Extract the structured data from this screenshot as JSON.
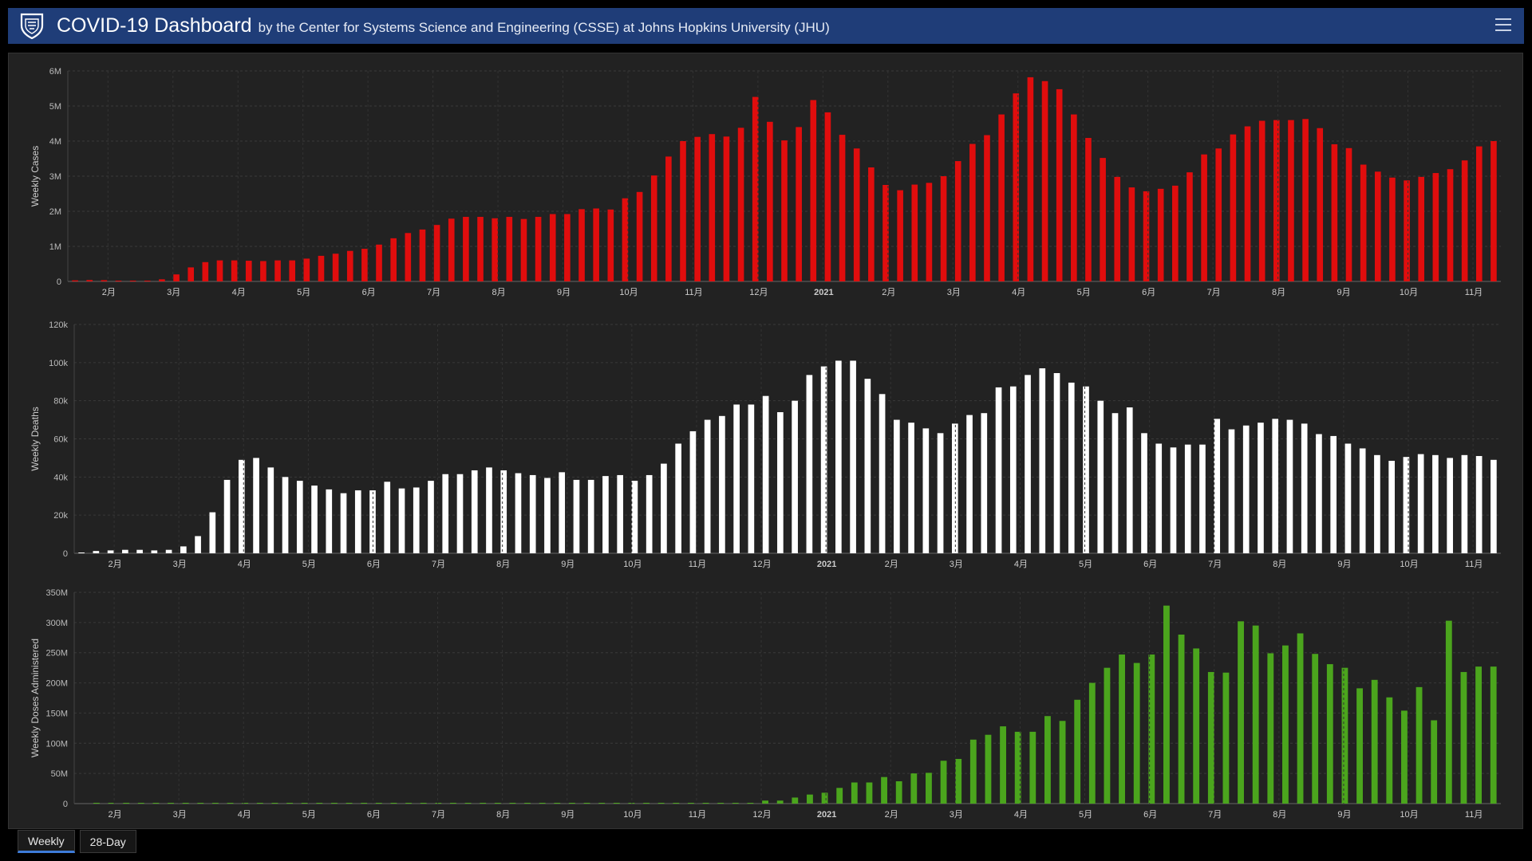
{
  "header": {
    "title": "COVID-19 Dashboard",
    "subtitle": "by the Center for Systems Science and Engineering (CSSE) at Johns Hopkins University (JHU)",
    "logo_icon": "university-shield-icon",
    "menu_icon": "hamburger-menu-icon"
  },
  "tabs": [
    {
      "label": "Weekly",
      "active": true
    },
    {
      "label": "28-Day",
      "active": false
    }
  ],
  "colors": {
    "header_bg": "#1f3d78",
    "panel_bg": "#222222",
    "cases": "#e00d0d",
    "deaths": "#ffffff",
    "doses": "#4ba51d",
    "tab_accent": "#3d7bd9"
  },
  "chart_data": [
    {
      "type": "bar",
      "ylabel": "Weekly Cases",
      "ylim": [
        0,
        6000000
      ],
      "yticks": [
        "0",
        "1M",
        "2M",
        "3M",
        "4M",
        "5M",
        "6M"
      ],
      "xticks": [
        "2月",
        "3月",
        "4月",
        "5月",
        "6月",
        "7月",
        "8月",
        "9月",
        "10月",
        "11月",
        "12月",
        "2021",
        "2月",
        "3月",
        "4月",
        "5月",
        "6月",
        "7月",
        "8月",
        "9月",
        "10月",
        "11月"
      ],
      "grid": true,
      "color": "#e00d0d",
      "values": [
        30000,
        40000,
        35000,
        8000,
        5000,
        20000,
        60000,
        200000,
        400000,
        550000,
        600000,
        600000,
        590000,
        580000,
        600000,
        600000,
        650000,
        730000,
        790000,
        870000,
        930000,
        1050000,
        1230000,
        1380000,
        1480000,
        1610000,
        1790000,
        1840000,
        1840000,
        1800000,
        1840000,
        1780000,
        1840000,
        1920000,
        1920000,
        2060000,
        2080000,
        2050000,
        2370000,
        2550000,
        3020000,
        3560000,
        4000000,
        4120000,
        4200000,
        4130000,
        4380000,
        5260000,
        4550000,
        4020000,
        4400000,
        5170000,
        4820000,
        4180000,
        3790000,
        3250000,
        2750000,
        2600000,
        2760000,
        2810000,
        3000000,
        3430000,
        3920000,
        4170000,
        4760000,
        5360000,
        5820000,
        5710000,
        5480000,
        4760000,
        4090000,
        3520000,
        2980000,
        2680000,
        2570000,
        2640000,
        2730000,
        3110000,
        3620000,
        3790000,
        4190000,
        4420000,
        4580000,
        4600000,
        4600000,
        4630000,
        4370000,
        3910000,
        3800000,
        3330000,
        3130000,
        2960000,
        2880000,
        2980000,
        3090000,
        3200000,
        3450000,
        3850000,
        4000000
      ]
    },
    {
      "type": "bar",
      "ylabel": "Weekly Deaths",
      "ylim": [
        0,
        120000
      ],
      "yticks": [
        "0",
        "20k",
        "40k",
        "60k",
        "80k",
        "100k",
        "120k"
      ],
      "xticks": [
        "2月",
        "3月",
        "4月",
        "5月",
        "6月",
        "7月",
        "8月",
        "9月",
        "10月",
        "11月",
        "12月",
        "2021",
        "2月",
        "3月",
        "4月",
        "5月",
        "6月",
        "7月",
        "8月",
        "9月",
        "10月",
        "11月"
      ],
      "grid": true,
      "color": "#ffffff",
      "values": [
        200,
        1200,
        1500,
        1800,
        1800,
        1500,
        1800,
        3600,
        9000,
        21500,
        38500,
        49000,
        50000,
        45000,
        40000,
        38000,
        35500,
        33500,
        31500,
        33000,
        33000,
        37500,
        34000,
        34500,
        38000,
        41500,
        41500,
        43500,
        45000,
        43500,
        42000,
        41000,
        39500,
        42500,
        38500,
        38500,
        40500,
        41000,
        38000,
        41000,
        47000,
        57500,
        64000,
        70000,
        72000,
        78000,
        78000,
        82500,
        74000,
        80000,
        93500,
        98000,
        101000,
        101000,
        91500,
        83500,
        70000,
        68500,
        65500,
        63000,
        68000,
        72500,
        73500,
        87000,
        87500,
        93500,
        97000,
        94500,
        89500,
        87500,
        80000,
        73500,
        76500,
        63000,
        57500,
        55500,
        57000,
        57000,
        70500,
        65000,
        67000,
        68500,
        70500,
        70000,
        68000,
        62500,
        61500,
        57500,
        55000,
        51500,
        48500,
        50500,
        52000,
        51500,
        50000,
        51500,
        51000,
        49000
      ]
    },
    {
      "type": "bar",
      "ylabel": "Weekly Doses Administered",
      "ylim": [
        0,
        350000000
      ],
      "yticks": [
        "0",
        "50M",
        "100M",
        "150M",
        "200M",
        "250M",
        "300M",
        "350M"
      ],
      "xticks": [
        "2月",
        "3月",
        "4月",
        "5月",
        "6月",
        "7月",
        "8月",
        "9月",
        "10月",
        "11月",
        "12月",
        "2021",
        "2月",
        "3月",
        "4月",
        "5月",
        "6月",
        "7月",
        "8月",
        "9月",
        "10月",
        "11月"
      ],
      "grid": true,
      "color": "#4ba51d",
      "values": [
        0,
        1000000,
        1000000,
        1000000,
        1000000,
        1000000,
        1000000,
        1000000,
        1000000,
        1000000,
        1000000,
        1000000,
        1000000,
        1000000,
        1000000,
        1000000,
        1000000,
        1000000,
        1000000,
        1000000,
        1000000,
        1000000,
        1000000,
        1000000,
        1000000,
        1000000,
        1000000,
        1000000,
        1000000,
        1000000,
        1000000,
        1000000,
        1000000,
        1000000,
        1000000,
        1000000,
        1000000,
        1000000,
        1000000,
        1000000,
        1000000,
        1000000,
        1000000,
        1000000,
        1000000,
        1000000,
        5000000,
        5000000,
        10000000,
        15000000,
        18000000,
        26000000,
        35000000,
        35000000,
        44000000,
        37000000,
        50000000,
        51000000,
        71000000,
        74000000,
        106000000,
        114000000,
        128000000,
        119000000,
        119000000,
        145000000,
        137000000,
        172000000,
        200000000,
        225000000,
        247000000,
        233000000,
        247000000,
        328000000,
        280000000,
        257000000,
        218000000,
        217000000,
        302000000,
        295000000,
        249000000,
        262000000,
        282000000,
        248000000,
        231000000,
        225000000,
        191000000,
        205000000,
        176000000,
        154000000,
        193000000,
        138000000,
        303000000,
        218000000,
        227000000,
        227000000
      ]
    }
  ]
}
